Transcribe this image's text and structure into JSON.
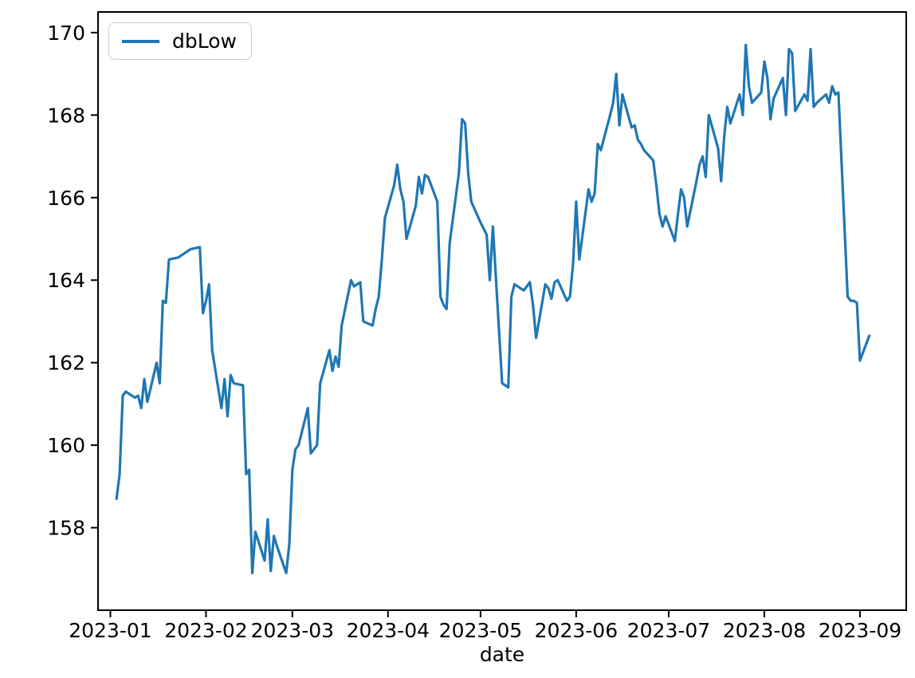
{
  "figure": {
    "xlabel": "date",
    "legend": {
      "label": "dbLow"
    }
  },
  "chart_data": {
    "type": "line",
    "title": "",
    "xlabel": "date",
    "ylabel": "",
    "legend_entries": [
      "dbLow"
    ],
    "legend_position": "upper left",
    "grid": false,
    "background": "#ffffff",
    "line_color": "#1f77b4",
    "ylim": [
      156.0,
      170.5
    ],
    "yticks": [
      158,
      160,
      162,
      164,
      166,
      168,
      170
    ],
    "xlim": [
      "2022-12-28",
      "2023-09-16"
    ],
    "xtick_dates": [
      "2023-01-01",
      "2023-02-01",
      "2023-03-01",
      "2023-04-01",
      "2023-05-01",
      "2023-06-01",
      "2023-07-01",
      "2023-08-01",
      "2023-09-01"
    ],
    "xtick_labels": [
      "2023-01",
      "2023-02",
      "2023-03",
      "2023-04",
      "2023-05",
      "2023-06",
      "2023-07",
      "2023-08",
      "2023-09"
    ],
    "series": [
      {
        "name": "dbLow",
        "dates": [
          "2023-01-03",
          "2023-01-04",
          "2023-01-05",
          "2023-01-06",
          "2023-01-09",
          "2023-01-10",
          "2023-01-11",
          "2023-01-12",
          "2023-01-13",
          "2023-01-16",
          "2023-01-17",
          "2023-01-18",
          "2023-01-19",
          "2023-01-20",
          "2023-01-23",
          "2023-01-24",
          "2023-01-25",
          "2023-01-26",
          "2023-01-27",
          "2023-01-30",
          "2023-01-31",
          "2023-02-01",
          "2023-02-02",
          "2023-02-03",
          "2023-02-06",
          "2023-02-07",
          "2023-02-08",
          "2023-02-09",
          "2023-02-10",
          "2023-02-13",
          "2023-02-14",
          "2023-02-15",
          "2023-02-16",
          "2023-02-17",
          "2023-02-20",
          "2023-02-21",
          "2023-02-22",
          "2023-02-23",
          "2023-02-24",
          "2023-02-27",
          "2023-02-28",
          "2023-03-01",
          "2023-03-02",
          "2023-03-03",
          "2023-03-06",
          "2023-03-07",
          "2023-03-08",
          "2023-03-09",
          "2023-03-10",
          "2023-03-13",
          "2023-03-14",
          "2023-03-15",
          "2023-03-16",
          "2023-03-17",
          "2023-03-20",
          "2023-03-21",
          "2023-03-22",
          "2023-03-23",
          "2023-03-24",
          "2023-03-27",
          "2023-03-28",
          "2023-03-29",
          "2023-03-30",
          "2023-03-31",
          "2023-04-03",
          "2023-04-04",
          "2023-04-05",
          "2023-04-06",
          "2023-04-07",
          "2023-04-10",
          "2023-04-11",
          "2023-04-12",
          "2023-04-13",
          "2023-04-14",
          "2023-04-17",
          "2023-04-18",
          "2023-04-19",
          "2023-04-20",
          "2023-04-21",
          "2023-04-24",
          "2023-04-25",
          "2023-04-26",
          "2023-04-27",
          "2023-04-28",
          "2023-05-01",
          "2023-05-02",
          "2023-05-03",
          "2023-05-04",
          "2023-05-05",
          "2023-05-08",
          "2023-05-09",
          "2023-05-10",
          "2023-05-11",
          "2023-05-12",
          "2023-05-15",
          "2023-05-16",
          "2023-05-17",
          "2023-05-18",
          "2023-05-19",
          "2023-05-22",
          "2023-05-23",
          "2023-05-24",
          "2023-05-25",
          "2023-05-26",
          "2023-05-29",
          "2023-05-30",
          "2023-05-31",
          "2023-06-01",
          "2023-06-02",
          "2023-06-05",
          "2023-06-06",
          "2023-06-07",
          "2023-06-08",
          "2023-06-09",
          "2023-06-12",
          "2023-06-13",
          "2023-06-14",
          "2023-06-15",
          "2023-06-16",
          "2023-06-19",
          "2023-06-20",
          "2023-06-21",
          "2023-06-22",
          "2023-06-23",
          "2023-06-26",
          "2023-06-27",
          "2023-06-28",
          "2023-06-29",
          "2023-06-30",
          "2023-07-03",
          "2023-07-04",
          "2023-07-05",
          "2023-07-06",
          "2023-07-07",
          "2023-07-10",
          "2023-07-11",
          "2023-07-12",
          "2023-07-13",
          "2023-07-14",
          "2023-07-17",
          "2023-07-18",
          "2023-07-19",
          "2023-07-20",
          "2023-07-21",
          "2023-07-24",
          "2023-07-25",
          "2023-07-26",
          "2023-07-27",
          "2023-07-28",
          "2023-07-31",
          "2023-08-01",
          "2023-08-02",
          "2023-08-03",
          "2023-08-04",
          "2023-08-07",
          "2023-08-08",
          "2023-08-09",
          "2023-08-10",
          "2023-08-11",
          "2023-08-14",
          "2023-08-15",
          "2023-08-16",
          "2023-08-17",
          "2023-08-18",
          "2023-08-21",
          "2023-08-22",
          "2023-08-23",
          "2023-08-24",
          "2023-08-25",
          "2023-08-28",
          "2023-08-29",
          "2023-08-30",
          "2023-08-31",
          "2023-09-01",
          "2023-09-04"
        ],
        "values": [
          158.7,
          159.3,
          161.2,
          161.3,
          161.15,
          161.2,
          160.9,
          161.6,
          161.05,
          162.0,
          161.5,
          163.5,
          163.45,
          164.5,
          164.55,
          164.6,
          164.65,
          164.7,
          164.75,
          164.8,
          163.2,
          163.5,
          163.9,
          162.3,
          160.9,
          161.6,
          160.7,
          161.7,
          161.5,
          161.45,
          159.3,
          159.4,
          156.9,
          157.9,
          157.2,
          158.2,
          156.95,
          157.8,
          157.55,
          156.9,
          157.6,
          159.4,
          159.9,
          160.0,
          160.9,
          159.8,
          159.9,
          160.0,
          161.5,
          162.3,
          161.8,
          162.15,
          161.9,
          162.9,
          164.0,
          163.85,
          163.9,
          163.95,
          163.0,
          162.9,
          163.3,
          163.6,
          164.5,
          165.5,
          166.3,
          166.8,
          166.2,
          165.9,
          165.0,
          165.8,
          166.5,
          166.1,
          166.55,
          166.5,
          165.9,
          163.6,
          163.4,
          163.3,
          164.9,
          166.6,
          167.9,
          167.8,
          166.6,
          165.9,
          165.4,
          165.25,
          165.1,
          164.0,
          165.3,
          161.5,
          161.45,
          161.4,
          163.6,
          163.9,
          163.75,
          163.85,
          163.95,
          163.4,
          162.6,
          163.9,
          163.8,
          163.55,
          163.95,
          164.0,
          163.5,
          163.6,
          164.4,
          165.9,
          164.5,
          166.2,
          165.9,
          166.1,
          167.3,
          167.15,
          168.0,
          168.3,
          169.0,
          167.75,
          168.5,
          167.7,
          167.75,
          167.4,
          167.3,
          167.15,
          166.9,
          166.3,
          165.6,
          165.3,
          165.55,
          164.95,
          165.6,
          166.2,
          166.0,
          165.3,
          166.4,
          166.8,
          167.0,
          166.5,
          168.0,
          167.2,
          166.4,
          167.5,
          168.2,
          167.8,
          168.5,
          168.0,
          169.7,
          168.7,
          168.3,
          168.55,
          169.3,
          168.9,
          167.9,
          168.4,
          168.9,
          168.0,
          169.6,
          169.5,
          168.1,
          168.5,
          168.35,
          169.6,
          168.2,
          168.3,
          168.5,
          168.3,
          168.7,
          168.5,
          168.55,
          163.6,
          163.5,
          163.5,
          163.45,
          162.05,
          162.65
        ]
      }
    ]
  }
}
